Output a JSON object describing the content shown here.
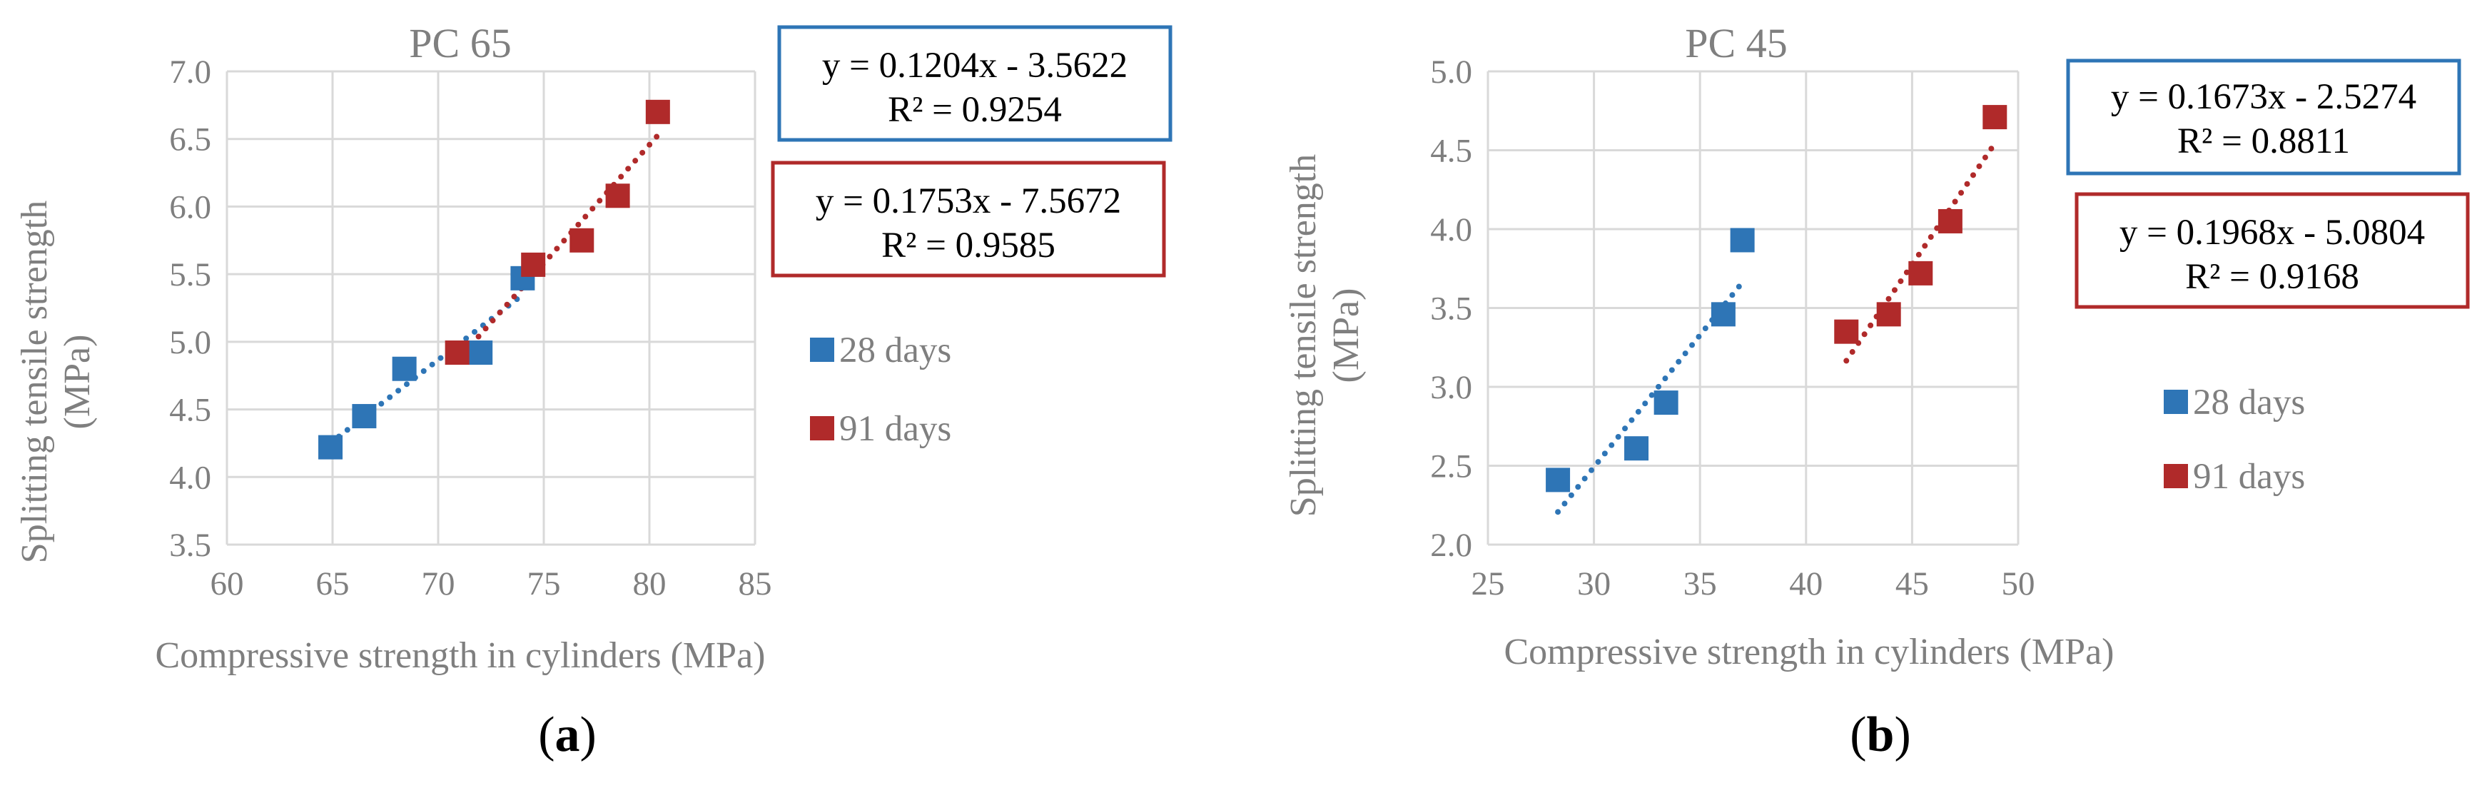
{
  "charts": {
    "a": {
      "title": "PC 65",
      "xlabel": "Compressive strength in cylinders (MPa)",
      "ylabel_line1": "Splitting tensile strength",
      "ylabel_line2": "(MPa)",
      "xticks": [
        "60",
        "65",
        "70",
        "75",
        "80",
        "85"
      ],
      "yticks": [
        "3.5",
        "4.0",
        "4.5",
        "5.0",
        "5.5",
        "6.0",
        "6.5",
        "7.0"
      ],
      "legend": [
        "28 days",
        "91 days"
      ],
      "eq28": [
        "y = 0.1204x - 3.5622",
        "R² = 0.9254"
      ],
      "eq91": [
        "y = 0.1753x - 7.5672",
        "R² = 0.9585"
      ],
      "panel_label": {
        "open": "(",
        "letter": "a",
        "close": ")"
      }
    },
    "b": {
      "title": "PC 45",
      "xlabel": "Compressive strength in cylinders (MPa)",
      "ylabel_line1": "Splitting tensile strength",
      "ylabel_line2": "(MPa)",
      "xticks": [
        "25",
        "30",
        "35",
        "40",
        "45",
        "50"
      ],
      "yticks": [
        "2.0",
        "2.5",
        "3.0",
        "3.5",
        "4.0",
        "4.5",
        "5.0"
      ],
      "legend": [
        "28 days",
        "91 days"
      ],
      "eq28": [
        "y = 0.1673x - 2.5274",
        "R² = 0.8811"
      ],
      "eq91": [
        "y = 0.1968x - 5.0804",
        "R² = 0.9168"
      ],
      "panel_label": {
        "open": "(",
        "letter": "b",
        "close": ")"
      }
    }
  },
  "colors": {
    "series_28": "#2e75b6",
    "series_91": "#b02a2a",
    "grid": "#d9d9d9",
    "text_gray": "#7f7f7f"
  },
  "chart_data": [
    {
      "type": "scatter",
      "title": "PC 65",
      "xlabel": "Compressive strength in cylinders (MPa)",
      "ylabel": "Splitting tensile strength (MPa)",
      "xlim": [
        60,
        85
      ],
      "ylim": [
        3.5,
        7.0
      ],
      "grid": true,
      "legend_position": "right",
      "series": [
        {
          "name": "28 days",
          "x": [
            64.9,
            66.5,
            68.4,
            72.0,
            74.0
          ],
          "y": [
            4.22,
            4.45,
            4.8,
            4.92,
            5.47
          ],
          "trendline": {
            "slope": 0.1204,
            "intercept": -3.5622,
            "r2": 0.9254,
            "x_range": [
              64.9,
              74.0
            ]
          }
        },
        {
          "name": "91 days",
          "x": [
            70.9,
            74.5,
            76.8,
            78.5,
            80.4
          ],
          "y": [
            4.92,
            5.57,
            5.75,
            6.08,
            6.7
          ],
          "trendline": {
            "slope": 0.1753,
            "intercept": -7.5672,
            "r2": 0.9585,
            "x_range": [
              70.9,
              80.4
            ]
          }
        }
      ]
    },
    {
      "type": "scatter",
      "title": "PC 45",
      "xlabel": "Compressive strength in cylinders (MPa)",
      "ylabel": "Splitting tensile strength (MPa)",
      "xlim": [
        25,
        50
      ],
      "ylim": [
        2.0,
        5.0
      ],
      "grid": true,
      "legend_position": "right",
      "series": [
        {
          "name": "28 days",
          "x": [
            28.3,
            32.0,
            33.4,
            36.1,
            37.0
          ],
          "y": [
            2.41,
            2.61,
            2.9,
            3.46,
            3.93
          ],
          "trendline": {
            "slope": 0.1673,
            "intercept": -2.5274,
            "r2": 0.8811,
            "x_range": [
              28.3,
              37.0
            ]
          }
        },
        {
          "name": "91 days",
          "x": [
            41.9,
            43.9,
            45.4,
            46.8,
            48.9
          ],
          "y": [
            3.35,
            3.46,
            3.72,
            4.05,
            4.71
          ],
          "trendline": {
            "slope": 0.1968,
            "intercept": -5.0804,
            "r2": 0.9168,
            "x_range": [
              41.9,
              48.9
            ]
          }
        }
      ]
    }
  ]
}
